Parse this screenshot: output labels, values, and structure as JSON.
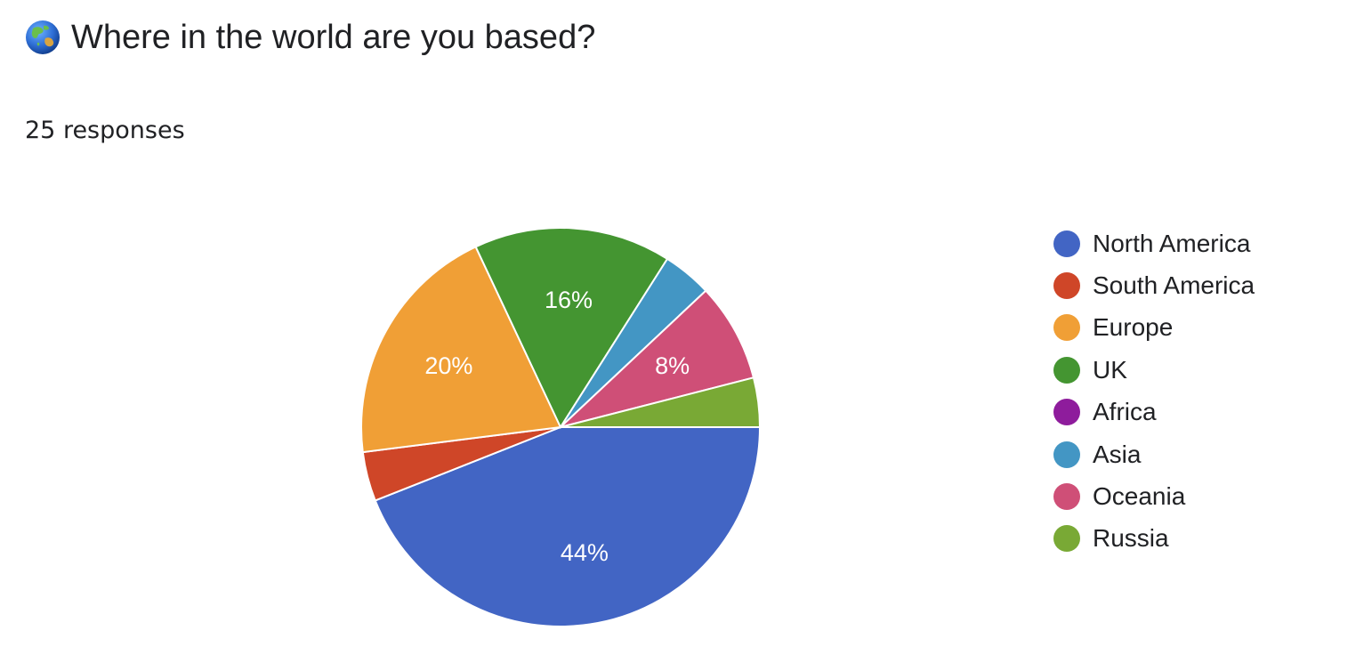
{
  "header": {
    "icon": "globe-asia-australia-icon",
    "title": "Where in the world are you based?",
    "responses": "25 responses"
  },
  "chart_data": {
    "type": "pie",
    "title": "Where in the world are you based?",
    "total_responses": 25,
    "start_direction": "three o'clock, clockwise",
    "legend_position": "right",
    "slices": [
      {
        "label": "North America",
        "value": 11,
        "percent": 44,
        "percent_label": "44%",
        "color": "#4265c4"
      },
      {
        "label": "South America",
        "value": 1,
        "percent": 4,
        "percent_label": "",
        "color": "#cf4628"
      },
      {
        "label": "Europe",
        "value": 5,
        "percent": 20,
        "percent_label": "20%",
        "color": "#f09f36"
      },
      {
        "label": "UK",
        "value": 4,
        "percent": 16,
        "percent_label": "16%",
        "color": "#449531"
      },
      {
        "label": "Africa",
        "value": 0,
        "percent": 0,
        "percent_label": "",
        "color": "#8e1c9c"
      },
      {
        "label": "Asia",
        "value": 1,
        "percent": 4,
        "percent_label": "",
        "color": "#4396c4"
      },
      {
        "label": "Oceania",
        "value": 2,
        "percent": 8,
        "percent_label": "8%",
        "color": "#cf4f77"
      },
      {
        "label": "Russia",
        "value": 1,
        "percent": 4,
        "percent_label": "",
        "color": "#79a935"
      }
    ]
  }
}
